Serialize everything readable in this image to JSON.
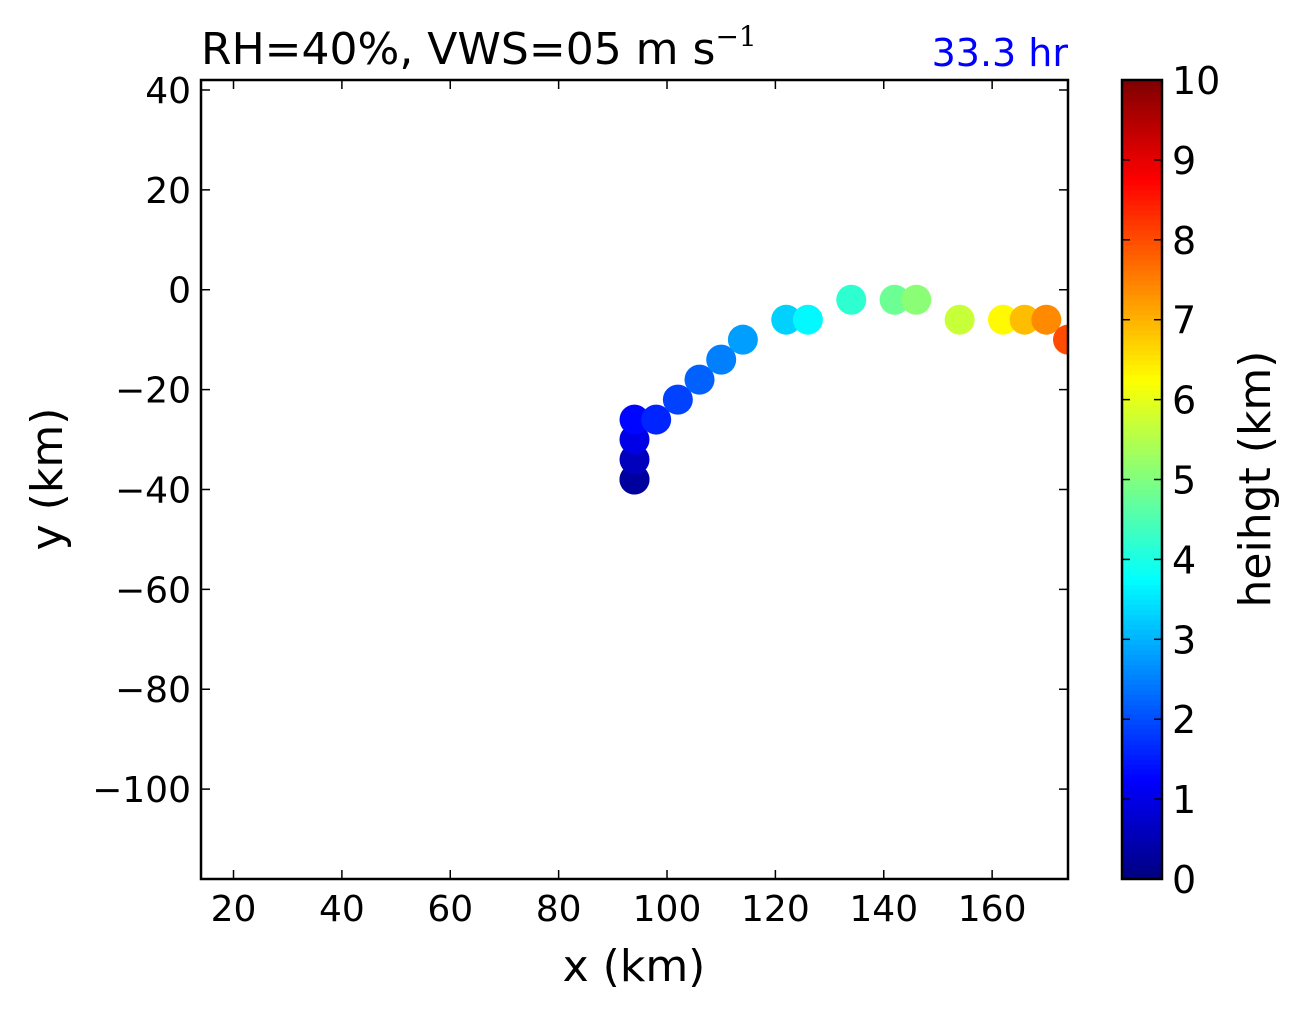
{
  "chart_data": {
    "type": "scatter",
    "title": "RH=40%, VWS=05 m s",
    "title_superscript": "−1",
    "annotation": "33.3 hr",
    "annotation_color": "#0000ff",
    "xlabel": "x (km)",
    "ylabel": "y (km)",
    "xlim": [
      14,
      174
    ],
    "ylim": [
      -118,
      42
    ],
    "xticks": [
      20,
      40,
      60,
      80,
      100,
      120,
      140,
      160
    ],
    "yticks": [
      40,
      20,
      0,
      -20,
      -40,
      -60,
      -80,
      -100
    ],
    "grid": false,
    "colormap": "jet",
    "colorbar": {
      "label": "heihgt (km)",
      "min": 0,
      "max": 10,
      "ticks": [
        0,
        1,
        2,
        3,
        4,
        5,
        6,
        7,
        8,
        9,
        10
      ]
    },
    "points": [
      {
        "x": 94,
        "y": -38,
        "height": 0.1
      },
      {
        "x": 94,
        "y": -38,
        "height": 0.3
      },
      {
        "x": 94,
        "y": -34,
        "height": 0.6
      },
      {
        "x": 94,
        "y": -30,
        "height": 1.0
      },
      {
        "x": 94,
        "y": -26,
        "height": 1.3
      },
      {
        "x": 98,
        "y": -26,
        "height": 1.6
      },
      {
        "x": 102,
        "y": -22,
        "height": 1.9
      },
      {
        "x": 106,
        "y": -18,
        "height": 2.2
      },
      {
        "x": 110,
        "y": -14,
        "height": 2.5
      },
      {
        "x": 114,
        "y": -10,
        "height": 2.8
      },
      {
        "x": 122,
        "y": -6,
        "height": 3.3
      },
      {
        "x": 126,
        "y": -6,
        "height": 3.7
      },
      {
        "x": 134,
        "y": -2,
        "height": 4.2
      },
      {
        "x": 142,
        "y": -2,
        "height": 4.8
      },
      {
        "x": 146,
        "y": -2,
        "height": 5.1
      },
      {
        "x": 154,
        "y": -6,
        "height": 5.7
      },
      {
        "x": 162,
        "y": -6,
        "height": 6.3
      },
      {
        "x": 166,
        "y": -6,
        "height": 6.9
      },
      {
        "x": 170,
        "y": -6,
        "height": 7.4
      },
      {
        "x": 174,
        "y": -10,
        "height": 8.0
      }
    ]
  }
}
